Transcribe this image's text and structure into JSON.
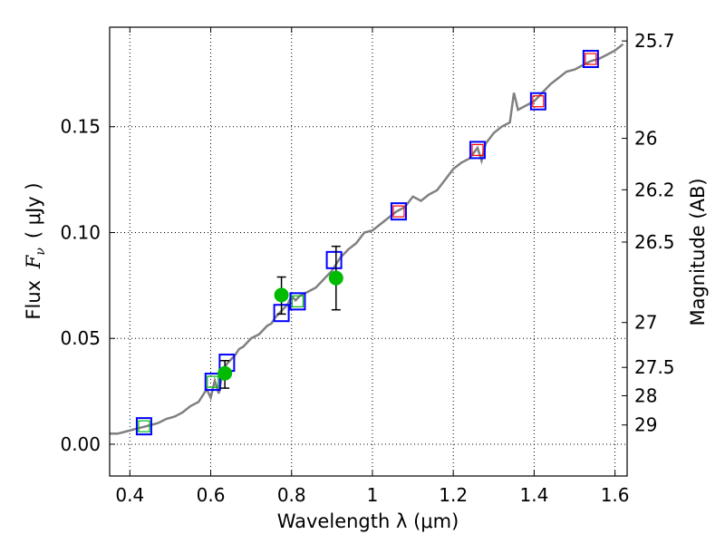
{
  "chart_data": {
    "type": "scatter",
    "xlabel": "Wavelength  λ (μm)",
    "ylabel_prefix": "Flux ",
    "ylabel_symbol": "F",
    "ylabel_subscript": "ν",
    "ylabel_unit": "( μJy )",
    "y2label": "Magnitude (AB)",
    "xlim": [
      0.35,
      1.63
    ],
    "ylim": [
      -0.015,
      0.197
    ],
    "grid": true,
    "xticks": [
      {
        "value": 0.4,
        "label": "0.4"
      },
      {
        "value": 0.6,
        "label": "0.6"
      },
      {
        "value": 0.8,
        "label": "0.8"
      },
      {
        "value": 1.0,
        "label": "1"
      },
      {
        "value": 1.2,
        "label": "1.2"
      },
      {
        "value": 1.4,
        "label": "1.4"
      },
      {
        "value": 1.6,
        "label": "1.6"
      }
    ],
    "yticks": [
      {
        "value": 0.0,
        "label": "0.00"
      },
      {
        "value": 0.05,
        "label": "0.05"
      },
      {
        "value": 0.1,
        "label": "0.10"
      },
      {
        "value": 0.15,
        "label": "0.15"
      }
    ],
    "y2ticks": [
      {
        "flux": 0.1905,
        "label": "25.7"
      },
      {
        "flux": 0.1445,
        "label": "26"
      },
      {
        "flux": 0.1202,
        "label": "26.2"
      },
      {
        "flux": 0.0955,
        "label": "26.5"
      },
      {
        "flux": 0.0575,
        "label": "27"
      },
      {
        "flux": 0.0363,
        "label": "27.5"
      },
      {
        "flux": 0.0229,
        "label": "28"
      },
      {
        "flux": 0.0091,
        "label": "29"
      }
    ],
    "spectrum": {
      "name": "model spectrum",
      "color": "#808080",
      "x": [
        0.35,
        0.37,
        0.39,
        0.41,
        0.43,
        0.45,
        0.47,
        0.49,
        0.51,
        0.53,
        0.55,
        0.57,
        0.59,
        0.6,
        0.61,
        0.62,
        0.63,
        0.64,
        0.65,
        0.66,
        0.67,
        0.68,
        0.69,
        0.7,
        0.71,
        0.72,
        0.73,
        0.74,
        0.75,
        0.76,
        0.77,
        0.78,
        0.79,
        0.8,
        0.81,
        0.82,
        0.84,
        0.86,
        0.88,
        0.9,
        0.92,
        0.94,
        0.96,
        0.98,
        1.0,
        1.02,
        1.04,
        1.06,
        1.08,
        1.1,
        1.12,
        1.14,
        1.16,
        1.18,
        1.2,
        1.22,
        1.24,
        1.26,
        1.27,
        1.28,
        1.3,
        1.32,
        1.34,
        1.35,
        1.36,
        1.38,
        1.4,
        1.42,
        1.44,
        1.46,
        1.48,
        1.5,
        1.52,
        1.54,
        1.56,
        1.58,
        1.6,
        1.62
      ],
      "y": [
        0.005,
        0.005,
        0.006,
        0.007,
        0.008,
        0.009,
        0.01,
        0.012,
        0.013,
        0.015,
        0.018,
        0.02,
        0.026,
        0.022,
        0.03,
        0.024,
        0.035,
        0.038,
        0.04,
        0.042,
        0.045,
        0.046,
        0.048,
        0.05,
        0.051,
        0.052,
        0.054,
        0.056,
        0.057,
        0.06,
        0.062,
        0.064,
        0.066,
        0.07,
        0.068,
        0.07,
        0.072,
        0.074,
        0.078,
        0.082,
        0.088,
        0.092,
        0.095,
        0.1,
        0.101,
        0.104,
        0.107,
        0.11,
        0.112,
        0.117,
        0.115,
        0.118,
        0.12,
        0.125,
        0.13,
        0.133,
        0.135,
        0.14,
        0.134,
        0.142,
        0.147,
        0.15,
        0.152,
        0.166,
        0.158,
        0.16,
        0.162,
        0.166,
        0.17,
        0.173,
        0.176,
        0.177,
        0.179,
        0.181,
        0.182,
        0.184,
        0.186,
        0.189
      ]
    },
    "series": [
      {
        "name": "model photometry (blue squares)",
        "color": "#0000ff",
        "marker": "square",
        "x": [
          0.435,
          0.605,
          0.64,
          0.775,
          0.815,
          0.905,
          1.065,
          1.26,
          1.41,
          1.54
        ],
        "y": [
          0.0085,
          0.0295,
          0.0385,
          0.062,
          0.0675,
          0.087,
          0.11,
          0.139,
          0.162,
          0.182
        ]
      },
      {
        "name": "photometry (green squares)",
        "color": "#00bb00",
        "marker": "square-small",
        "x": [
          0.435,
          0.605,
          0.815
        ],
        "y": [
          0.0085,
          0.0295,
          0.0675
        ]
      },
      {
        "name": "photometry (red squares)",
        "color": "#ff0000",
        "marker": "square-small",
        "x": [
          1.065,
          1.26,
          1.41,
          1.54
        ],
        "y": [
          0.11,
          0.139,
          0.162,
          0.182
        ]
      },
      {
        "name": "observed flux (green circles)",
        "color": "#00bb00",
        "marker": "circle",
        "x": [
          0.635,
          0.775,
          0.91
        ],
        "y": [
          0.0335,
          0.0705,
          0.0785
        ],
        "yerr_low": [
          0.0265,
          0.0615,
          0.0635
        ],
        "yerr_high": [
          0.0395,
          0.079,
          0.0935
        ]
      }
    ]
  }
}
